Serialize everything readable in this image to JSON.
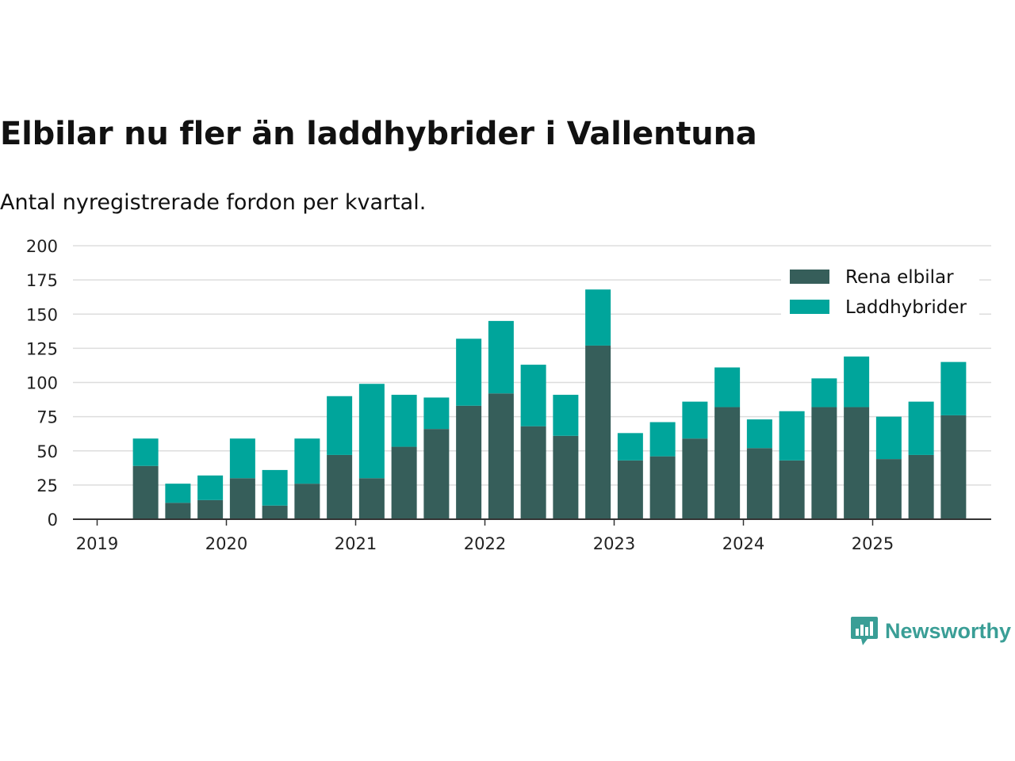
{
  "title": "Elbilar nu fler än laddhybrider i Vallentuna",
  "subtitle": "Antal nyregistrerade fordon per kvartal.",
  "brand": {
    "name": "Newsworthy",
    "icon": "newsworthy-logo-icon",
    "color": "#3a9e96"
  },
  "chart_data": {
    "type": "bar",
    "stacked": true,
    "categories": [
      "2019 Q2",
      "2019 Q3",
      "2019 Q4",
      "2020 Q1",
      "2020 Q2",
      "2020 Q3",
      "2020 Q4",
      "2021 Q1",
      "2021 Q2",
      "2021 Q3",
      "2021 Q4",
      "2022 Q1",
      "2022 Q2",
      "2022 Q3",
      "2022 Q4",
      "2023 Q1",
      "2023 Q2",
      "2023 Q3",
      "2023 Q4",
      "2024 Q1",
      "2024 Q2",
      "2024 Q3",
      "2024 Q4",
      "2025 Q1",
      "2025 Q2",
      "2025 Q3"
    ],
    "series": [
      {
        "name": "Rena elbilar",
        "color": "#365e5a",
        "values": [
          39,
          12,
          14,
          30,
          10,
          26,
          47,
          30,
          53,
          66,
          83,
          92,
          68,
          61,
          127,
          43,
          46,
          59,
          82,
          52,
          43,
          82,
          82,
          44,
          47,
          76
        ]
      },
      {
        "name": "Laddhybrider",
        "color": "#00a59b",
        "values": [
          20,
          14,
          18,
          29,
          26,
          33,
          43,
          69,
          38,
          23,
          49,
          53,
          45,
          30,
          41,
          20,
          25,
          27,
          29,
          21,
          36,
          21,
          37,
          31,
          39,
          39
        ]
      }
    ],
    "x_ticks": [
      "2019",
      "2020",
      "2021",
      "2022",
      "2023",
      "2024",
      "2025"
    ],
    "y_ticks": [
      "0",
      "25",
      "50",
      "75",
      "100",
      "125",
      "150",
      "175",
      "200"
    ],
    "ylim": [
      0,
      200
    ],
    "xlabel": "",
    "ylabel": "",
    "grid": true,
    "legend": "top-right"
  }
}
